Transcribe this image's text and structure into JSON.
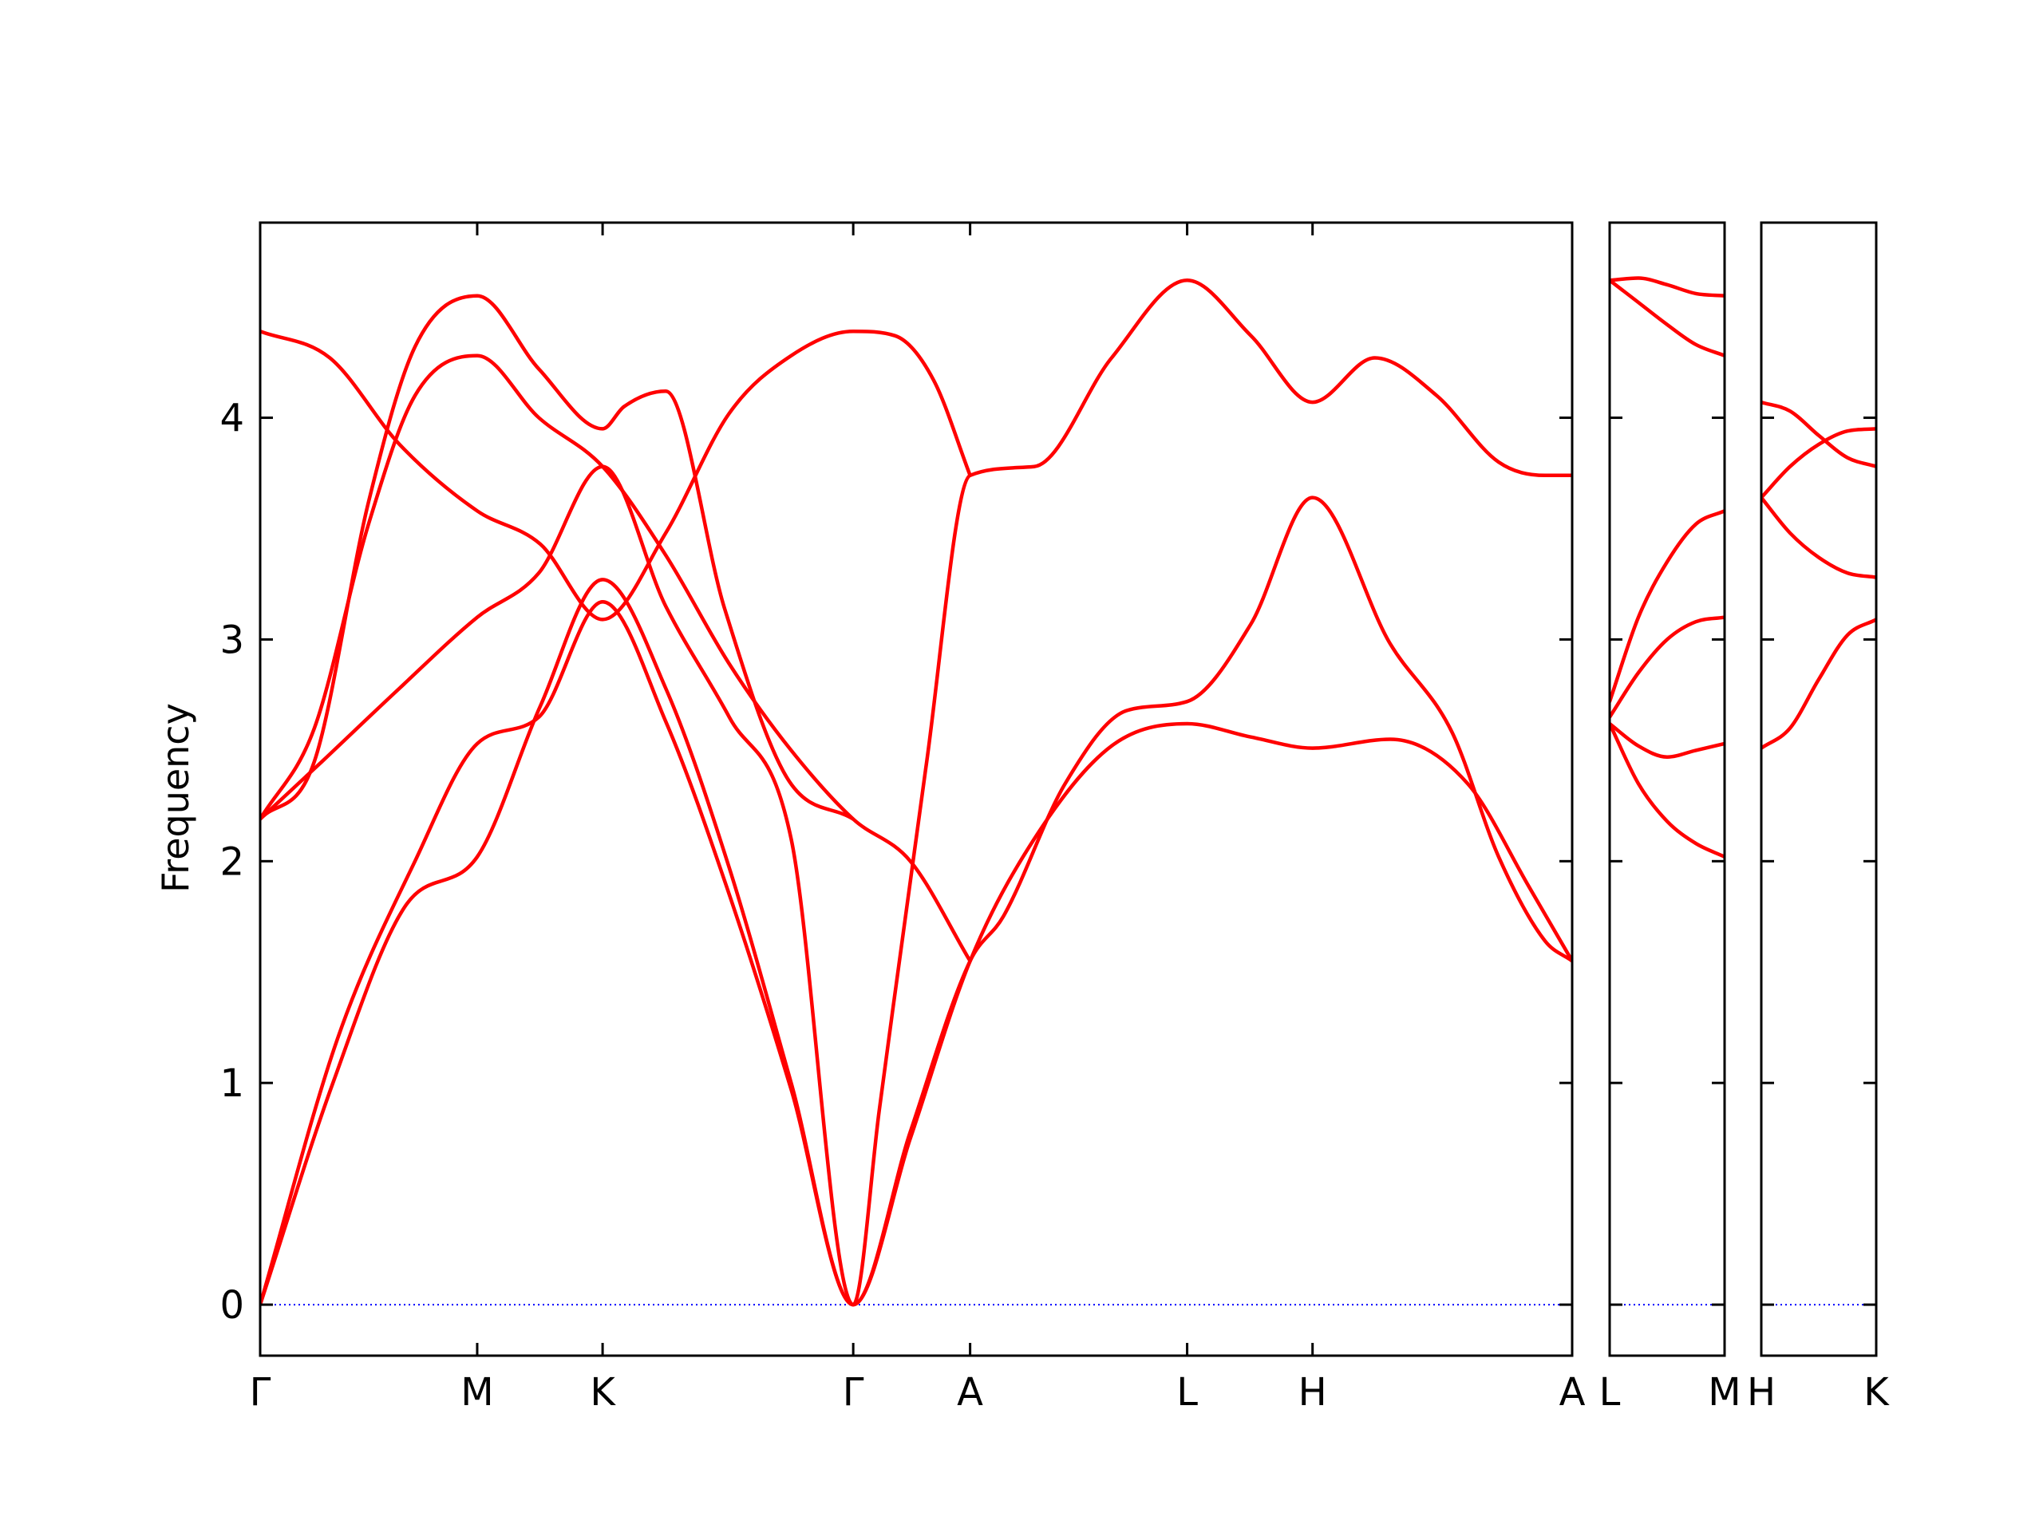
{
  "chart_data": {
    "type": "line",
    "ylabel": "Frequency",
    "ylim": [
      -0.23,
      4.88
    ],
    "yticks": [
      0,
      1,
      2,
      3,
      4
    ],
    "line_color": "#ff0000",
    "zero_line_color": "#0000ff",
    "grid": false,
    "legend": "none",
    "panels": [
      {
        "range": [
          0,
          8.475
        ],
        "ticks": [
          {
            "label": "Γ",
            "x": 0
          },
          {
            "label": "M",
            "x": 1.402
          },
          {
            "label": "K",
            "x": 2.212
          },
          {
            "label": "Γ",
            "x": 3.831
          },
          {
            "label": "A",
            "x": 4.586
          },
          {
            "label": "L",
            "x": 5.988
          },
          {
            "label": "H",
            "x": 6.798
          },
          {
            "label": "A",
            "x": 8.475
          }
        ],
        "branches": [
          {
            "x": [
              0,
              0.47,
              0.94,
              1.402,
              1.81,
              2.212,
              2.62,
              3.03,
              3.43,
              3.831,
              4.2,
              4.586,
              5.0,
              5.5,
              5.988,
              6.4,
              6.798,
              7.3,
              7.8,
              8.2,
              8.475
            ],
            "y": [
              0,
              1.0,
              1.8,
              2.02,
              2.7,
              3.27,
              2.78,
              1.97,
              1.0,
              0,
              0.75,
              1.55,
              2.1,
              2.52,
              2.62,
              2.56,
              2.51,
              2.55,
              2.35,
              1.88,
              1.55
            ]
          },
          {
            "x": [
              0,
              0.5,
              1.0,
              1.402,
              1.8,
              2.212,
              2.62,
              3.03,
              3.43,
              3.831,
              4.2,
              4.586,
              4.8,
              5.2,
              5.6,
              5.988,
              6.4,
              6.798,
              7.3,
              7.7,
              8.0,
              8.3,
              8.475
            ],
            "y": [
              0,
              1.2,
              2.0,
              2.53,
              2.65,
              3.17,
              2.63,
              1.85,
              0.97,
              0,
              0.78,
              1.55,
              1.75,
              2.35,
              2.68,
              2.72,
              3.07,
              3.64,
              2.98,
              2.58,
              2.02,
              1.64,
              1.55
            ]
          },
          {
            "x": [
              0,
              0.4,
              0.9,
              1.402,
              1.8,
              2.212,
              2.62,
              3.03,
              3.43,
              3.831,
              4.0,
              4.3,
              4.586,
              5.0,
              5.5,
              5.988,
              6.4,
              6.798,
              7.2,
              7.6,
              8.0,
              8.3,
              8.475
            ],
            "y": [
              2.19,
              2.45,
              2.78,
              3.1,
              3.3,
              3.78,
              3.15,
              2.65,
              2.1,
              0,
              0.88,
              2.42,
              3.74,
              3.78,
              4.27,
              4.62,
              4.37,
              4.07,
              4.27,
              4.1,
              3.8,
              3.74,
              3.74
            ]
          },
          {
            "x": [
              0,
              0.45,
              0.9,
              1.402,
              1.81,
              2.212,
              2.62,
              3.03,
              3.43,
              3.831,
              4.1,
              4.35,
              4.586
            ],
            "y": [
              4.39,
              4.27,
              3.88,
              3.58,
              3.43,
              3.09,
              3.48,
              4.02,
              4.28,
              4.39,
              4.37,
              4.17,
              3.74
            ]
          },
          {
            "x": [
              0,
              0.35,
              0.7,
              1.0,
              1.402,
              1.8,
              2.212,
              2.62,
              3.03,
              3.43,
              3.831,
              4.2,
              4.586
            ],
            "y": [
              2.19,
              2.6,
              3.52,
              4.1,
              4.28,
              4.0,
              3.78,
              3.38,
              2.89,
              2.5,
              2.19,
              2.0,
              1.55
            ]
          },
          {
            "x": [
              0,
              0.35,
              0.7,
              1.0,
              1.402,
              1.8,
              2.212,
              2.35,
              2.62,
              3.0,
              3.4,
              3.831
            ],
            "y": [
              2.19,
              2.45,
              3.62,
              4.32,
              4.55,
              4.22,
              3.95,
              4.05,
              4.12,
              3.14,
              2.38,
              2.19
            ]
          }
        ]
      },
      {
        "range": [
          0,
          1
        ],
        "ticks": [
          {
            "label": "L",
            "x": 0
          },
          {
            "label": "M",
            "x": 1
          }
        ],
        "branches": [
          {
            "x": [
              0,
              0.25,
              0.5,
              0.75,
              1
            ],
            "y": [
              2.62,
              2.35,
              2.18,
              2.08,
              2.02
            ]
          },
          {
            "x": [
              0,
              0.25,
              0.5,
              0.75,
              1
            ],
            "y": [
              2.62,
              2.52,
              2.47,
              2.5,
              2.53
            ]
          },
          {
            "x": [
              0,
              0.25,
              0.5,
              0.75,
              1
            ],
            "y": [
              2.65,
              2.85,
              3.0,
              3.08,
              3.1
            ]
          },
          {
            "x": [
              0,
              0.25,
              0.5,
              0.75,
              1
            ],
            "y": [
              2.72,
              3.1,
              3.35,
              3.52,
              3.58
            ]
          },
          {
            "x": [
              0,
              0.25,
              0.5,
              0.75,
              1
            ],
            "y": [
              4.62,
              4.52,
              4.42,
              4.33,
              4.28
            ]
          },
          {
            "x": [
              0,
              0.25,
              0.5,
              0.75,
              1
            ],
            "y": [
              4.62,
              4.63,
              4.6,
              4.56,
              4.55
            ]
          }
        ]
      },
      {
        "range": [
          0,
          1
        ],
        "ticks": [
          {
            "label": "H",
            "x": 0
          },
          {
            "label": "K",
            "x": 1
          }
        ],
        "branches": [
          {
            "x": [
              0,
              0.25,
              0.5,
              0.75,
              1
            ],
            "y": [
              2.51,
              2.6,
              2.82,
              3.02,
              3.09
            ]
          },
          {
            "x": [
              0,
              0.25,
              0.5,
              0.75,
              1
            ],
            "y": [
              3.64,
              3.48,
              3.37,
              3.3,
              3.28
            ]
          },
          {
            "x": [
              0,
              0.25,
              0.5,
              0.75,
              1
            ],
            "y": [
              3.64,
              3.78,
              3.88,
              3.94,
              3.95
            ]
          },
          {
            "x": [
              0,
              0.25,
              0.5,
              0.75,
              1
            ],
            "y": [
              4.07,
              4.03,
              3.92,
              3.82,
              3.78
            ]
          }
        ]
      }
    ]
  }
}
